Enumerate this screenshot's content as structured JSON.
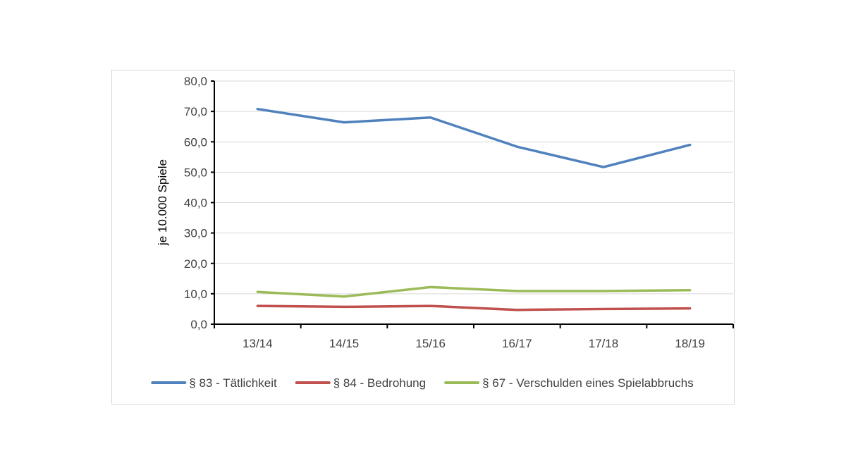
{
  "chart_data": {
    "type": "line",
    "title": "",
    "xlabel": "",
    "ylabel": "je 10.000 Spiele",
    "ylim": [
      0,
      80
    ],
    "ytick_step": 10,
    "ytick_labels": [
      "0,0",
      "10,0",
      "20,0",
      "30,0",
      "40,0",
      "50,0",
      "60,0",
      "70,0",
      "80,0"
    ],
    "categories": [
      "13/14",
      "14/15",
      "15/16",
      "16/17",
      "17/18",
      "18/19"
    ],
    "grid": true,
    "legend_position": "bottom",
    "series": [
      {
        "name": "§ 83 - Tätlichkeit",
        "color": "#4f81bd",
        "values": [
          70.8,
          66.4,
          68.0,
          58.4,
          51.7,
          59.0
        ]
      },
      {
        "name": "§ 84 - Bedrohung",
        "color": "#c0504d",
        "values": [
          6.0,
          5.7,
          6.0,
          4.7,
          5.0,
          5.2
        ]
      },
      {
        "name": "§ 67 - Verschulden eines Spielabbruchs",
        "color": "#9bbb59",
        "values": [
          10.6,
          9.1,
          12.2,
          10.9,
          10.9,
          11.2
        ]
      }
    ]
  }
}
